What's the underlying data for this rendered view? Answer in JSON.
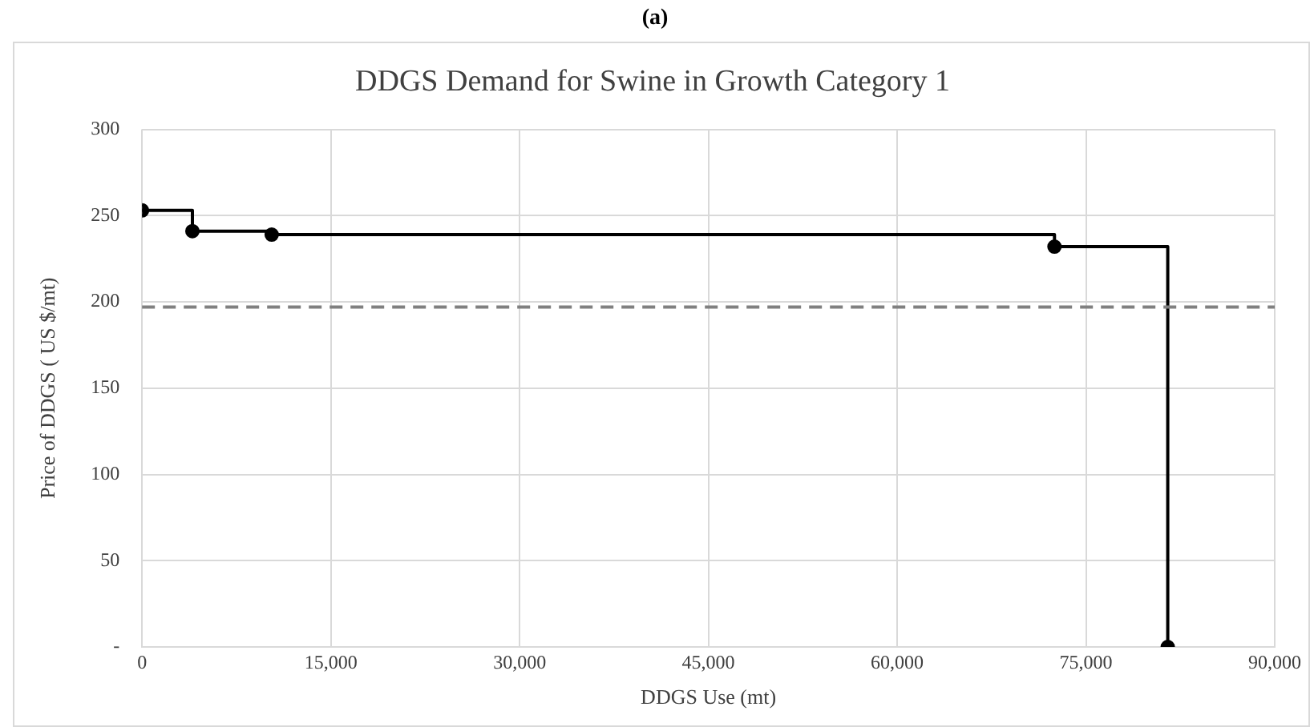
{
  "chart_data": {
    "type": "step",
    "title": "DDGS Demand for Swine in Growth Category 1",
    "subtitle": "(a)",
    "xlabel": "DDGS Use (mt)",
    "ylabel": "Price of DDGS ( US $/mt)",
    "x": [
      0,
      4000,
      10300,
      72500,
      81500
    ],
    "series": [
      {
        "color": "#000000",
        "values": [
          253,
          241,
          239,
          232,
          0
        ]
      }
    ],
    "xlim": [
      0,
      90000
    ],
    "xticks": [
      {
        "value": 0,
        "label": "0"
      },
      {
        "value": 15000,
        "label": "15,000"
      },
      {
        "value": 30000,
        "label": "30,000"
      },
      {
        "value": 45000,
        "label": "45,000"
      },
      {
        "value": 60000,
        "label": "60,000"
      },
      {
        "value": 75000,
        "label": "75,000"
      },
      {
        "value": 90000,
        "label": "90,000"
      }
    ],
    "ylim": [
      0,
      300
    ],
    "yticks": [
      {
        "value": 0,
        "label": "-"
      },
      50,
      100,
      150,
      200,
      250,
      300
    ],
    "ref_lines": [
      {
        "axis": "y",
        "value": 197,
        "color": "#808080",
        "line_style": "dashed"
      }
    ],
    "grid": true,
    "legend": false,
    "marker": "circle",
    "line_style": "solid"
  }
}
